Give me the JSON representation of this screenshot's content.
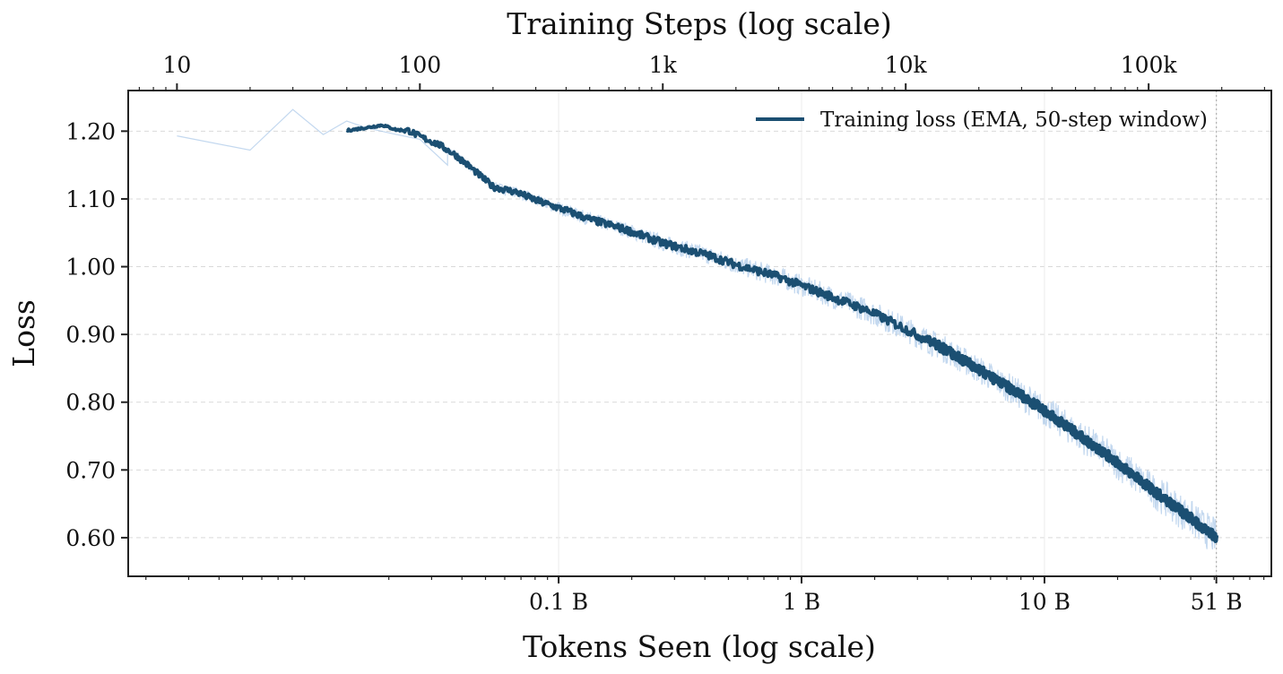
{
  "chart_data": {
    "type": "line",
    "top_axis": {
      "label": "Training Steps  (log scale)",
      "scale": "log",
      "range": [
        6.3,
        320000
      ],
      "ticks": [
        {
          "value": 10,
          "label": "10"
        },
        {
          "value": 100,
          "label": "100"
        },
        {
          "value": 1000,
          "label": "1k"
        },
        {
          "value": 10000,
          "label": "10k"
        },
        {
          "value": 100000,
          "label": "100k"
        }
      ]
    },
    "x_axis": {
      "label": "Tokens Seen  (log scale)",
      "scale": "log",
      "unit": "tokens",
      "ticks": [
        {
          "value": 100000000,
          "label": "0.1 B"
        },
        {
          "value": 1000000000,
          "label": "1 B"
        },
        {
          "value": 10000000000,
          "label": "10 B"
        },
        {
          "value": 51000000000,
          "label": "51 B"
        }
      ]
    },
    "y_axis": {
      "label": "Loss",
      "range": [
        0.543,
        1.26
      ],
      "ticks": [
        {
          "value": 0.6,
          "label": "0.60"
        },
        {
          "value": 0.7,
          "label": "0.70"
        },
        {
          "value": 0.8,
          "label": "0.80"
        },
        {
          "value": 0.9,
          "label": "0.90"
        },
        {
          "value": 1.0,
          "label": "1.00"
        },
        {
          "value": 1.1,
          "label": "1.10"
        },
        {
          "value": 1.2,
          "label": "1.20"
        }
      ]
    },
    "grid": true,
    "legend": {
      "position": "top-right",
      "entries": [
        "Training loss  (EMA, 50-step window)"
      ]
    },
    "colors": {
      "ema": "#1b4f72",
      "raw": "#aac8e8",
      "grid": "#d9d9d9"
    },
    "series": [
      {
        "name": "Training loss  (EMA, 50-step window)",
        "x_steps": [
          50,
          60,
          70,
          80,
          90,
          100,
          120,
          140,
          160,
          180,
          200,
          250,
          300,
          400,
          500,
          700,
          1000,
          1500,
          2000,
          3000,
          5000,
          7000,
          10000,
          15000,
          20000,
          30000,
          40000,
          50000,
          70000,
          100000,
          150000,
          190000
        ],
        "loss": [
          1.201,
          1.205,
          1.209,
          1.202,
          1.201,
          1.192,
          1.18,
          1.165,
          1.148,
          1.132,
          1.118,
          1.11,
          1.098,
          1.083,
          1.07,
          1.055,
          1.035,
          1.018,
          1.003,
          0.985,
          0.955,
          0.935,
          0.908,
          0.875,
          0.848,
          0.81,
          0.78,
          0.755,
          0.718,
          0.675,
          0.628,
          0.6
        ]
      },
      {
        "name": "",
        "x_steps": [
          10,
          20,
          30,
          40,
          50,
          60,
          80,
          100,
          130
        ],
        "loss": [
          1.193,
          1.172,
          1.232,
          1.195,
          1.215,
          1.205,
          1.195,
          1.188,
          1.15
        ]
      }
    ]
  }
}
